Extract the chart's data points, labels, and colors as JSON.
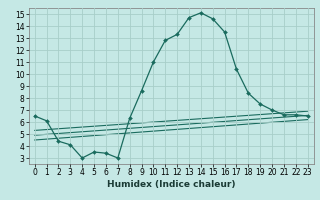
{
  "title": "",
  "xlabel": "Humidex (Indice chaleur)",
  "bg_color": "#c5e8e5",
  "grid_color": "#a8cec9",
  "line_color": "#1a6b5e",
  "xlim": [
    -0.5,
    23.5
  ],
  "ylim": [
    2.5,
    15.5
  ],
  "xticks": [
    0,
    1,
    2,
    3,
    4,
    5,
    6,
    7,
    8,
    9,
    10,
    11,
    12,
    13,
    14,
    15,
    16,
    17,
    18,
    19,
    20,
    21,
    22,
    23
  ],
  "yticks": [
    3,
    4,
    5,
    6,
    7,
    8,
    9,
    10,
    11,
    12,
    13,
    14,
    15
  ],
  "line1_x": [
    0,
    1,
    2,
    3,
    4,
    5,
    6,
    7,
    8,
    9,
    10,
    11,
    12,
    13,
    14,
    15,
    16,
    17,
    18,
    19,
    20,
    21,
    22,
    23
  ],
  "line1_y": [
    6.5,
    6.1,
    4.4,
    4.1,
    3.0,
    3.5,
    3.4,
    3.0,
    6.3,
    8.6,
    11.0,
    12.8,
    13.3,
    14.7,
    15.1,
    14.6,
    13.5,
    10.4,
    8.4,
    7.5,
    7.0,
    6.6,
    6.6,
    6.5
  ],
  "line2_x": [
    0,
    23
  ],
  "line2_y": [
    4.5,
    6.2
  ],
  "line3_x": [
    0,
    23
  ],
  "line3_y": [
    4.9,
    6.55
  ],
  "line4_x": [
    0,
    23
  ],
  "line4_y": [
    5.3,
    6.9
  ],
  "xlabel_fontsize": 6.5,
  "tick_fontsize": 5.5
}
